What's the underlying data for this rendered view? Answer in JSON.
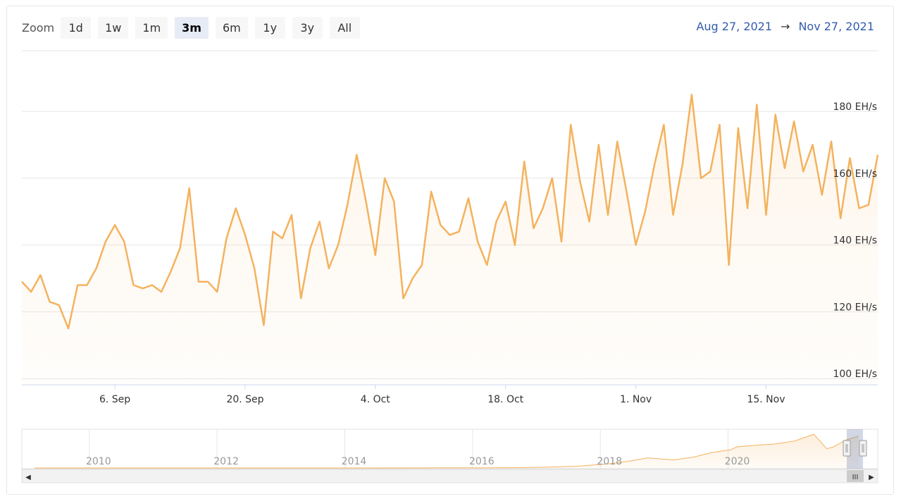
{
  "toolbar": {
    "zoom_label": "Zoom",
    "buttons": [
      "1d",
      "1w",
      "1m",
      "3m",
      "6m",
      "1y",
      "3y",
      "All"
    ],
    "active": "3m",
    "range_from": "Aug 27, 2021",
    "range_arrow": "→",
    "range_to": "Nov 27, 2021"
  },
  "colors": {
    "line": "#f4b25e",
    "range_text": "#335cad",
    "active_button": "#e6ebf5"
  },
  "chart_data": [
    {
      "type": "area",
      "x_label": "",
      "y_label": "",
      "x_ticks": [
        "6. Sep",
        "20. Sep",
        "4. Oct",
        "18. Oct",
        "1. Nov",
        "15. Nov"
      ],
      "x_range": [
        "2021-08-27",
        "2021-11-27"
      ],
      "y_ticks": [
        "100 EH/s",
        "120 EH/s",
        "140 EH/s",
        "160 EH/s",
        "180 EH/s"
      ],
      "y_range": [
        100,
        180
      ],
      "grid": true,
      "series": [
        {
          "x": [
            "2021-08-27",
            "2021-08-28",
            "2021-08-29",
            "2021-08-30",
            "2021-08-31",
            "2021-09-01",
            "2021-09-02",
            "2021-09-03",
            "2021-09-04",
            "2021-09-05",
            "2021-09-06",
            "2021-09-07",
            "2021-09-08",
            "2021-09-09",
            "2021-09-10",
            "2021-09-11",
            "2021-09-12",
            "2021-09-13",
            "2021-09-14",
            "2021-09-15",
            "2021-09-16",
            "2021-09-17",
            "2021-09-18",
            "2021-09-19",
            "2021-09-20",
            "2021-09-21",
            "2021-09-22",
            "2021-09-23",
            "2021-09-24",
            "2021-09-25",
            "2021-09-26",
            "2021-09-27",
            "2021-09-28",
            "2021-09-29",
            "2021-09-30",
            "2021-10-01",
            "2021-10-02",
            "2021-10-03",
            "2021-10-04",
            "2021-10-05",
            "2021-10-06",
            "2021-10-07",
            "2021-10-08",
            "2021-10-09",
            "2021-10-10",
            "2021-10-11",
            "2021-10-12",
            "2021-10-13",
            "2021-10-14",
            "2021-10-15",
            "2021-10-16",
            "2021-10-17",
            "2021-10-18",
            "2021-10-19",
            "2021-10-20",
            "2021-10-21",
            "2021-10-22",
            "2021-10-23",
            "2021-10-24",
            "2021-10-25",
            "2021-10-26",
            "2021-10-27",
            "2021-10-28",
            "2021-10-29",
            "2021-10-30",
            "2021-10-31",
            "2021-11-01",
            "2021-11-02",
            "2021-11-03",
            "2021-11-04",
            "2021-11-05",
            "2021-11-06",
            "2021-11-07",
            "2021-11-08",
            "2021-11-09",
            "2021-11-10",
            "2021-11-11",
            "2021-11-12",
            "2021-11-13",
            "2021-11-14",
            "2021-11-15",
            "2021-11-16",
            "2021-11-17",
            "2021-11-18",
            "2021-11-19",
            "2021-11-20",
            "2021-11-21",
            "2021-11-22",
            "2021-11-23",
            "2021-11-24",
            "2021-11-25",
            "2021-11-26",
            "2021-11-27"
          ],
          "values": [
            129,
            126,
            131,
            123,
            122,
            115,
            128,
            128,
            133,
            141,
            146,
            141,
            128,
            127,
            128,
            126,
            132,
            139,
            157,
            129,
            129,
            126,
            142,
            151,
            143,
            133,
            116,
            144,
            142,
            149,
            124,
            139,
            147,
            133,
            140,
            152,
            167,
            153,
            137,
            160,
            153,
            124,
            130,
            134,
            156,
            146,
            143,
            144,
            154,
            141,
            134,
            147,
            153,
            140,
            165,
            145,
            151,
            160,
            141,
            176,
            159,
            147,
            170,
            149,
            171,
            156,
            140,
            150,
            164,
            176,
            149,
            164,
            185,
            160,
            162,
            176,
            134,
            175,
            151,
            182,
            149,
            179,
            163,
            177,
            162,
            170,
            155,
            171,
            148,
            166,
            151,
            152,
            167
          ]
        }
      ]
    },
    {
      "type": "area",
      "x_ticks": [
        "2010",
        "2012",
        "2014",
        "2016",
        "2018",
        "2020"
      ],
      "x_range": [
        2008.8,
        2022.2
      ],
      "y_range": [
        0,
        190
      ],
      "series": [
        {
          "x": [
            2009,
            2010,
            2011,
            2012,
            2013,
            2014,
            2015,
            2016,
            2016.5,
            2017,
            2017.5,
            2018,
            2018.3,
            2018.6,
            2019,
            2019.3,
            2019.6,
            2019.9,
            2020,
            2020.3,
            2020.6,
            2020.9,
            2021.2,
            2021.4,
            2021.5,
            2021.7,
            2021.9
          ],
          "values": [
            0,
            0,
            0,
            0,
            0,
            0.1,
            0.4,
            1,
            1.5,
            4,
            9,
            22,
            35,
            52,
            42,
            55,
            80,
            95,
            110,
            118,
            125,
            140,
            175,
            100,
            108,
            145,
            165
          ]
        }
      ]
    }
  ],
  "navigator": {
    "scroll_left": "◀",
    "scroll_right": "▶",
    "grip": "III"
  }
}
